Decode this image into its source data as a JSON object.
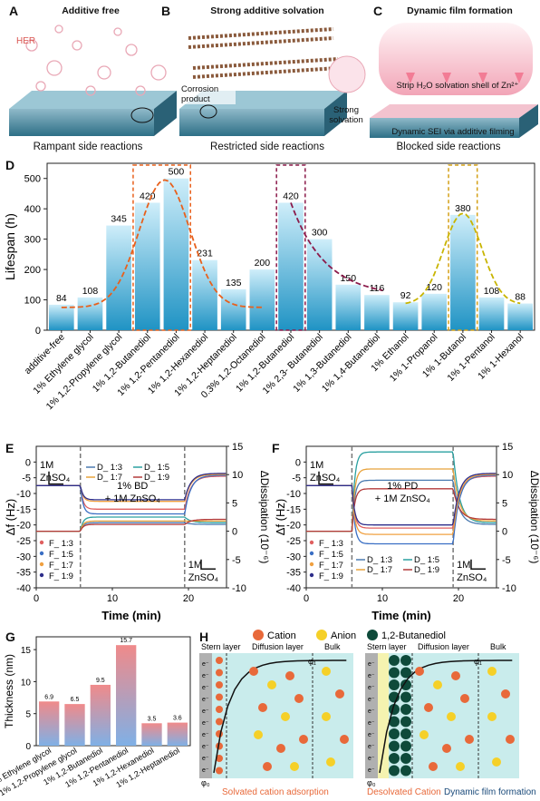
{
  "top": {
    "panels": [
      {
        "letter": "A",
        "title": "Additive free",
        "caption": "Rampant side reactions",
        "note": "HER",
        "extra": ""
      },
      {
        "letter": "B",
        "title": "Strong additive solvation",
        "caption": "Restricted side reactions",
        "note": "Corrosion product",
        "extra": "Strong solvation"
      },
      {
        "letter": "C",
        "title": "Dynamic film formation",
        "caption": "Blocked side reactions",
        "note": "Strip H₂O solvation shell of Zn²⁺",
        "extra": "Dynamic SEI via additive filming"
      }
    ]
  },
  "chart_data": [
    {
      "id": "D",
      "type": "bar",
      "ylabel": "Lifespan (h)",
      "ylim": [
        0,
        550
      ],
      "yticks": [
        0,
        100,
        200,
        300,
        400,
        500
      ],
      "categories": [
        "additive-free",
        "1% Ethylene glycol",
        "1% 1,2-Propylene glycol",
        "1% 1,2-Butanediol",
        "1% 1,2-Pentanediol",
        "1% 1,2-Hexanediol",
        "1% 1,2-Heptanediol",
        "0.3% 1,2-Octanediol",
        "1% 1,2-Butanediol",
        "1% 2,3- Butanediol",
        "1% 1,3-Butanediol",
        "1% 1,4-Butanediol",
        "1% Ethanol",
        "1% 1-Propanol",
        "1% 1-Butanol",
        "1% 1-Pentanol",
        "1% 1-Hexanol"
      ],
      "values": [
        84,
        108,
        345,
        420,
        500,
        231,
        135,
        200,
        420,
        300,
        150,
        116,
        92,
        120,
        380,
        108,
        88
      ],
      "highlight_boxes": [
        {
          "from": 3,
          "to": 4,
          "color": "#e8601c"
        },
        {
          "from": 8,
          "to": 8,
          "color": "#8b1a4a"
        },
        {
          "from": 14,
          "to": 14,
          "color": "#d4a017"
        }
      ],
      "colors": {
        "bar_top": "#cfeefa",
        "bar_bottom": "#1f93c4",
        "curve1": "#e8601c",
        "curve2": "#8b1a4a",
        "curve3": "#c8b400"
      }
    },
    {
      "id": "E",
      "type": "line",
      "xlabel": "Time (min)",
      "ylabel_left": "Δf (Hz)",
      "ylabel_right": "ΔDissipation (10⁻⁶)",
      "xlim": [
        0,
        25
      ],
      "ylim_left": [
        -40,
        5
      ],
      "ylim_right": [
        -10,
        15
      ],
      "xticks": [
        0,
        10,
        20
      ],
      "yticks_left": [
        0,
        -5,
        -10,
        -15,
        -20,
        -25,
        -30,
        -35,
        -40
      ],
      "yticks_right": [
        15,
        10,
        5,
        0,
        -5,
        -10
      ],
      "series_f": [
        {
          "name": "F_ 1:3",
          "plateau": -15
        },
        {
          "name": "F_ 1:5",
          "plateau": -16.5
        },
        {
          "name": "F_ 1:7",
          "plateau": -12.5
        },
        {
          "name": "F_ 1:9",
          "plateau": -12
        }
      ],
      "series_d": [
        {
          "name": "D_ 1:3",
          "plateau": 1.5
        },
        {
          "name": "D_ 1:5",
          "plateau": 2.5
        },
        {
          "name": "D_ 1:7",
          "plateau": 1.8
        },
        {
          "name": "D_ 1:9",
          "plateau": 1.2
        }
      ],
      "switch_times": [
        5.8,
        19.5
      ],
      "annotations": {
        "start": "1M ZnSO₄",
        "middle_1": "1% BD",
        "middle_2": "+ 1M ZnSO₄",
        "end": "1M ZnSO₄"
      }
    },
    {
      "id": "F",
      "type": "line",
      "xlabel": "Time (min)",
      "ylabel_left": "Δf (Hz)",
      "ylabel_right": "ΔDissipation (10⁻⁶)",
      "xlim": [
        0,
        25
      ],
      "ylim_left": [
        -40,
        5
      ],
      "ylim_right": [
        -10,
        15
      ],
      "xticks": [
        0,
        10,
        20
      ],
      "yticks_left": [
        0,
        -5,
        -10,
        -15,
        -20,
        -25,
        -30,
        -35,
        -40
      ],
      "yticks_right": [
        15,
        10,
        5,
        0,
        -5,
        -10
      ],
      "series_f": [
        {
          "name": "F_ 1:3",
          "plateau": -21
        },
        {
          "name": "F_ 1:5",
          "plateau": -26
        },
        {
          "name": "F_ 1:7",
          "plateau": -23
        },
        {
          "name": "F_ 1:9",
          "plateau": -20
        }
      ],
      "series_d": [
        {
          "name": "D_ 1:3",
          "plateau": 9
        },
        {
          "name": "D_ 1:5",
          "plateau": 14
        },
        {
          "name": "D_ 1:7",
          "plateau": 11
        },
        {
          "name": "D_ 1:9",
          "plateau": 7.5
        }
      ],
      "switch_times": [
        6,
        19.3
      ],
      "annotations": {
        "start": "1M ZnSO₄",
        "middle_1": "1% PD",
        "middle_2": "+ 1M ZnSO₄",
        "end": "1M ZnSO₄"
      }
    },
    {
      "id": "G",
      "type": "bar",
      "ylabel": "Thickness (nm)",
      "ylim": [
        0,
        17
      ],
      "yticks": [
        0,
        5,
        10,
        15
      ],
      "categories": [
        "1% Ethylene glycol",
        "1% 1,2-Propylene glycol",
        "1% 1,2-Butanediol",
        "1% 1,2-Pentanediol",
        "1% 1,2-Hexanediol",
        "1% 1,2-Heptanediol"
      ],
      "values": [
        6.9,
        6.5,
        9.5,
        15.7,
        3.5,
        3.6
      ],
      "labels": [
        "6.9",
        "6.5",
        "9.5",
        "15.7",
        "3.5",
        "3.6"
      ],
      "colors": {
        "bar_top": "#f08a8a",
        "bar_bottom": "#7fb0e6"
      }
    }
  ],
  "schematic_h": {
    "legend": [
      "Cation",
      "Anion",
      "1,2-Butanediol"
    ],
    "left": {
      "stern": "Stern layer",
      "diffusion": "Diffusion layer",
      "bulk": "Bulk",
      "phi1": "φ₁",
      "phi0": "φ₀",
      "caption": "Solvated cation adsorption"
    },
    "right": {
      "stern": "Stern layer",
      "diffusion": "Diffusion layer",
      "bulk": "Bulk",
      "phi1": "φ₁",
      "phi0": "φ₀",
      "caption1": "Desolvated Cation",
      "caption2": "Dynamic film formation"
    },
    "electron": "e⁻",
    "colors": {
      "cation": "#e8693a",
      "anion": "#f5d028",
      "bd": "#0e4a3a",
      "bg": "#c9ecec",
      "electrode": "#b0b0b0"
    }
  }
}
